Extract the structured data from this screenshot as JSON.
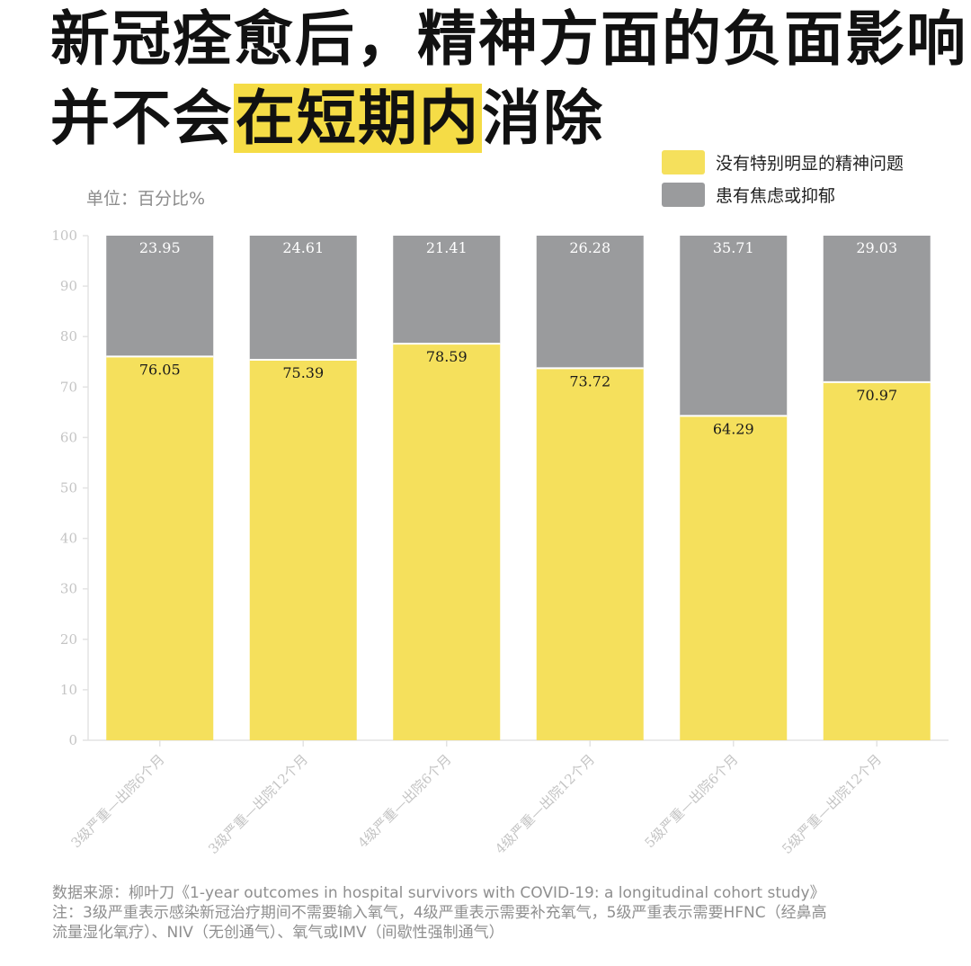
{
  "title": {
    "line1": "新冠痊愈后，精神方面的负面影响",
    "line2_pre": "并不会",
    "line2_highlight": "在短期内",
    "line2_post": "消除"
  },
  "unit": "单位：百分比%",
  "legend": [
    {
      "label": "没有特别明显的精神问题",
      "color": "#f5e05c"
    },
    {
      "label": "患有焦虑或抑郁",
      "color": "#9a9b9d"
    }
  ],
  "chart_data": {
    "type": "bar",
    "stacked": true,
    "categories": [
      "3级严重—出院6个月",
      "3级严重—出院12个月",
      "4级严重—出院6个月",
      "4级严重—出院12个月",
      "5级严重—出院6个月",
      "5级严重—出院12个月"
    ],
    "series": [
      {
        "name": "没有特别明显的精神问题",
        "values": [
          76.05,
          75.39,
          78.59,
          73.72,
          64.29,
          70.97
        ],
        "color": "#f5e05c"
      },
      {
        "name": "患有焦虑或抑郁",
        "values": [
          23.95,
          24.61,
          21.41,
          26.28,
          35.71,
          29.03
        ],
        "color": "#9a9b9d"
      }
    ],
    "ylim": [
      0,
      100
    ],
    "yticks": [
      0,
      10,
      20,
      30,
      40,
      50,
      60,
      70,
      80,
      90,
      100
    ],
    "grid": false,
    "legend_position": "top-right"
  },
  "footer": {
    "source": "数据来源：柳叶刀《1-year outcomes in hospital survivors with COVID-19: a longitudinal cohort study》",
    "note_line1": "注：3级严重表示感染新冠治疗期间不需要输入氧气，4级严重表示需要补充氧气，5级严重表示需要HFNC（经鼻高",
    "note_line2": "流量湿化氧疗）、NIV（无创通气）、氧气或IMV（间歇性强制通气）"
  }
}
